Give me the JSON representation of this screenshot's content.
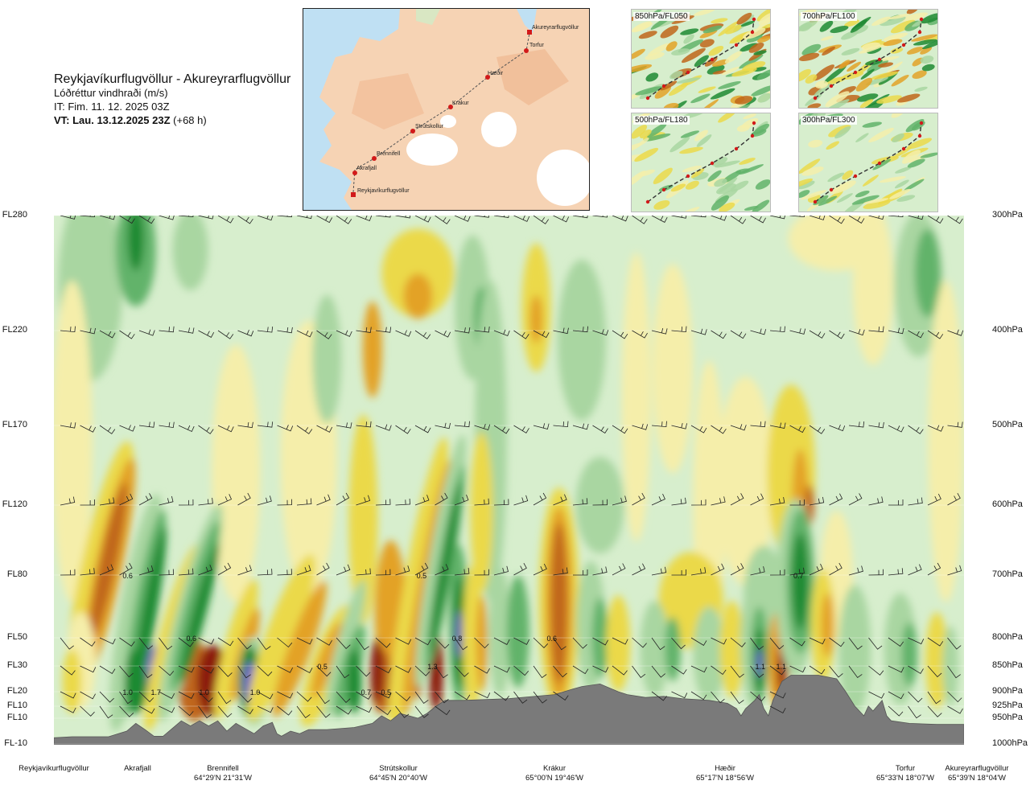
{
  "header": {
    "route": "Reykjavíkurflugvöllur - Akureyrarflugvöllur",
    "parameter": "Lóðréttur vindhraði (m/s)",
    "issue_time": "IT: Fim. 11. 12. 2025 03Z",
    "valid_label": "VT: Lau. 13.12.2025 23Z",
    "valid_offset": "(+68 h)"
  },
  "route_map": {
    "waypoints": [
      "Akureyrarflugvöllur",
      "Torfur",
      "Hæðir",
      "Krákur",
      "Strútskollur",
      "Brennifell",
      "Akrafjall",
      "Reykjavíkurflugvöllur"
    ],
    "land_color": "#f6d3b4",
    "sea_color": "#bfe0f3",
    "route_color": "#d21a1a"
  },
  "level_maps": [
    {
      "label": "850hPa/FL050"
    },
    {
      "label": "700hPa/FL100"
    },
    {
      "label": "500hPa/FL180"
    },
    {
      "label": "300hPa/FL300"
    }
  ],
  "left_levels": [
    "FL280",
    "FL220",
    "FL170",
    "FL120",
    "FL80",
    "FL50",
    "FL30",
    "FL20",
    "FL10",
    "FL10",
    "FL-10"
  ],
  "right_levels": [
    "300hPa",
    "400hPa",
    "500hPa",
    "600hPa",
    "700hPa",
    "800hPa",
    "850hPa",
    "900hPa",
    "925hPa",
    "950hPa",
    "1000hPa"
  ],
  "stations": [
    {
      "name": "Reykjavíkurflugvöllur",
      "coords": ""
    },
    {
      "name": "Akrafjall",
      "coords": ""
    },
    {
      "name": "Brennifell",
      "coords": "64°29'N 21°31'W"
    },
    {
      "name": "Strútskollur",
      "coords": "64°45'N 20°40'W"
    },
    {
      "name": "Krákur",
      "coords": "65°00'N 19°46'W"
    },
    {
      "name": "Hæðir",
      "coords": "65°17'N 18°56'W"
    },
    {
      "name": "Torfur",
      "coords": "65°33'N 18°07'W"
    },
    {
      "name": "Akureyrarflugvöllur",
      "coords": "65°39'N 18°04'W"
    }
  ],
  "chart_data": {
    "type": "heatmap",
    "x_label": "",
    "y_label": "",
    "y_levels_fl": [
      "FL280",
      "FL220",
      "FL170",
      "FL120",
      "FL80",
      "FL50",
      "FL30",
      "FL20",
      "FL10",
      "FL10",
      "FL-10"
    ],
    "y_levels_hpa": [
      300,
      400,
      500,
      600,
      700,
      800,
      850,
      900,
      925,
      950,
      1000
    ],
    "colors": {
      "strong_up": "#8c1a10",
      "up_brown": "#c0661a",
      "up_orange": "#e3a227",
      "up_yellow": "#ebd94a",
      "weak_up": "#f5eeaa",
      "neutral": "#ffffff",
      "weak_down": "#d7eecd",
      "down_light": "#a9d6a1",
      "down_mid": "#62b36a",
      "down_strong": "#1f8a33",
      "extreme_down": "#6d64c8",
      "terrain": "#7a7a7a"
    },
    "contour_labels": [
      {
        "text": "1.0",
        "station_frac": 0.081,
        "hpa": 900
      },
      {
        "text": "1.7",
        "station_frac": 0.112,
        "hpa": 900
      },
      {
        "text": "0.6",
        "station_frac": 0.081,
        "hpa": 700
      },
      {
        "text": "0.6",
        "station_frac": 0.151,
        "hpa": 800
      },
      {
        "text": "1.0",
        "station_frac": 0.165,
        "hpa": 900
      },
      {
        "text": "1.0",
        "station_frac": 0.221,
        "hpa": 900
      },
      {
        "text": "0.5",
        "station_frac": 0.295,
        "hpa": 850
      },
      {
        "text": "0.7",
        "station_frac": 0.343,
        "hpa": 900
      },
      {
        "text": "0.5",
        "station_frac": 0.365,
        "hpa": 900
      },
      {
        "text": "0.5",
        "station_frac": 0.404,
        "hpa": 700
      },
      {
        "text": "1.3",
        "station_frac": 0.416,
        "hpa": 850
      },
      {
        "text": "0.8",
        "station_frac": 0.443,
        "hpa": 800
      },
      {
        "text": "0.6",
        "station_frac": 0.547,
        "hpa": 800
      },
      {
        "text": "1.1",
        "station_frac": 0.776,
        "hpa": 850
      },
      {
        "text": "1.1",
        "station_frac": 0.799,
        "hpa": 850
      },
      {
        "text": "0.7",
        "station_frac": 0.818,
        "hpa": 700
      }
    ]
  }
}
